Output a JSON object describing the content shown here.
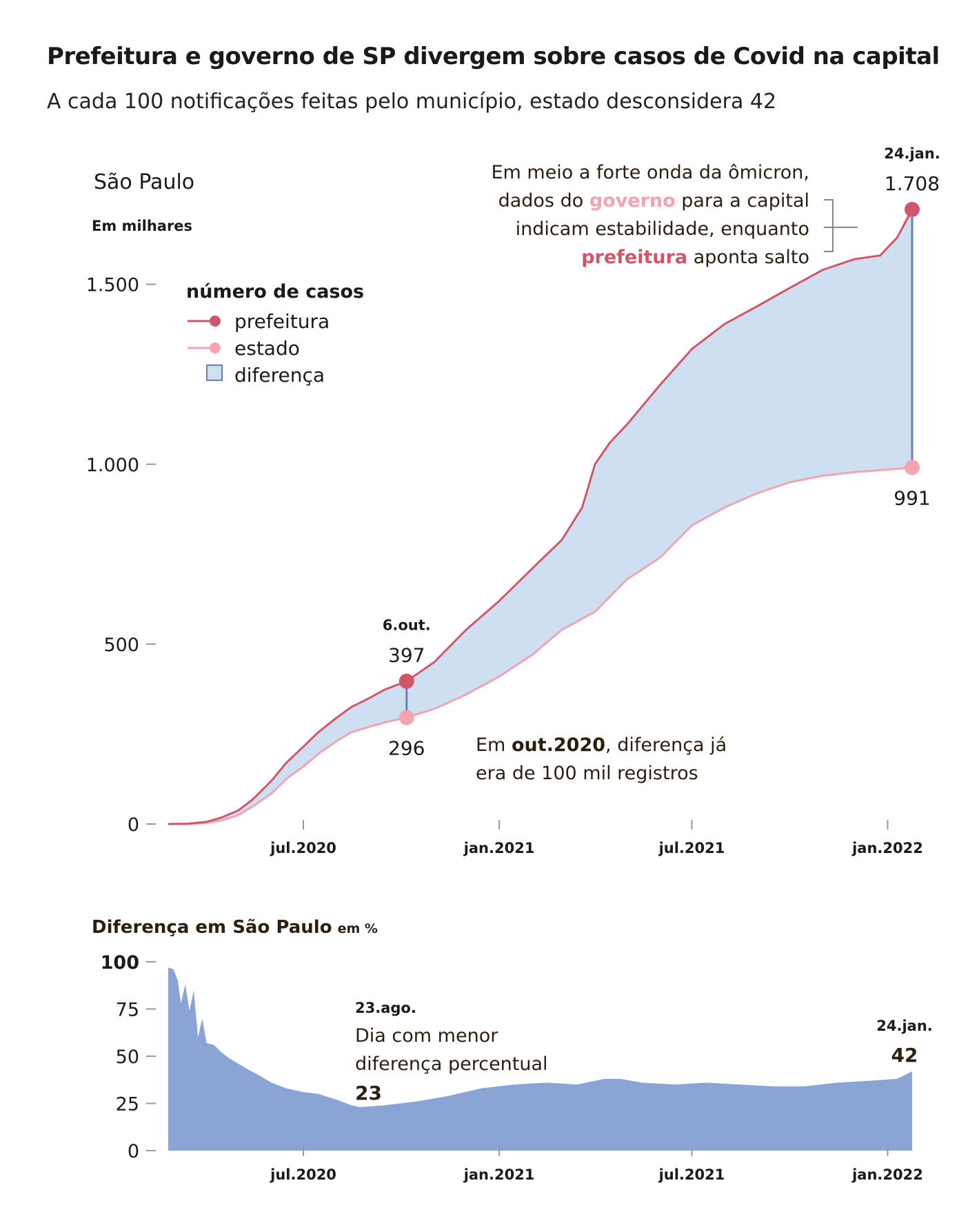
{
  "title": "Prefeitura e governo de SP divergem sobre casos de Covid na capital",
  "subtitle": "A cada 100 notificações feitas pelo município, estado desconsidera 42",
  "colors": {
    "prefeitura": "#d0576b",
    "estado": "#f4a3b1",
    "diferenca_fill": "#cfdff2",
    "diferenca_stroke": "#6b7fb5",
    "pct_fill": "#8aa4d6",
    "text": "#1a1a1a",
    "annotation": "#2b1f10",
    "axis": "#999999"
  },
  "chart_data": [
    {
      "type": "area",
      "location_label": "São Paulo",
      "unit_label": "Em milhares",
      "legend": {
        "title": "número de casos",
        "items": [
          {
            "label": "prefeitura",
            "icon": "red-dot-line-icon"
          },
          {
            "label": "estado",
            "icon": "pink-dot-line-icon"
          },
          {
            "label": "diferença",
            "icon": "blue-square-icon"
          }
        ]
      },
      "ylim": [
        0,
        1708
      ],
      "yticks": [
        {
          "value": 0,
          "label": "0"
        },
        {
          "value": 500,
          "label": "500"
        },
        {
          "value": 1000,
          "label": "1.000"
        },
        {
          "value": 1500,
          "label": "1.500"
        }
      ],
      "xticks": [
        {
          "date": "2020-07-01",
          "label": "jul.2020"
        },
        {
          "date": "2021-01-01",
          "label": "jan.2021"
        },
        {
          "date": "2021-07-01",
          "label": "jul.2021"
        },
        {
          "date": "2022-01-01",
          "label": "jan.2022"
        }
      ],
      "series": [
        {
          "name": "prefeitura",
          "points": [
            [
              "2020-02-25",
              0
            ],
            [
              "2020-03-15",
              1
            ],
            [
              "2020-04-01",
              6
            ],
            [
              "2020-04-15",
              18
            ],
            [
              "2020-05-01",
              38
            ],
            [
              "2020-05-15",
              70
            ],
            [
              "2020-06-01",
              120
            ],
            [
              "2020-06-15",
              170
            ],
            [
              "2020-07-01",
              215
            ],
            [
              "2020-07-15",
              255
            ],
            [
              "2020-08-01",
              295
            ],
            [
              "2020-08-15",
              325
            ],
            [
              "2020-09-01",
              350
            ],
            [
              "2020-09-15",
              373
            ],
            [
              "2020-10-06",
              397
            ],
            [
              "2020-11-01",
              450
            ],
            [
              "2020-12-01",
              540
            ],
            [
              "2021-01-01",
              620
            ],
            [
              "2021-02-01",
              710
            ],
            [
              "2021-03-01",
              790
            ],
            [
              "2021-03-20",
              880
            ],
            [
              "2021-04-01",
              1000
            ],
            [
              "2021-04-15",
              1060
            ],
            [
              "2021-05-01",
              1110
            ],
            [
              "2021-06-01",
              1220
            ],
            [
              "2021-07-01",
              1320
            ],
            [
              "2021-08-01",
              1390
            ],
            [
              "2021-09-01",
              1440
            ],
            [
              "2021-10-01",
              1490
            ],
            [
              "2021-11-01",
              1540
            ],
            [
              "2021-12-01",
              1570
            ],
            [
              "2021-12-25",
              1580
            ],
            [
              "2022-01-10",
              1630
            ],
            [
              "2022-01-24",
              1708
            ]
          ]
        },
        {
          "name": "estado",
          "points": [
            [
              "2020-02-25",
              0
            ],
            [
              "2020-03-15",
              0
            ],
            [
              "2020-04-01",
              3
            ],
            [
              "2020-04-15",
              10
            ],
            [
              "2020-05-01",
              25
            ],
            [
              "2020-05-15",
              50
            ],
            [
              "2020-06-01",
              85
            ],
            [
              "2020-06-15",
              125
            ],
            [
              "2020-07-01",
              160
            ],
            [
              "2020-07-15",
              195
            ],
            [
              "2020-08-01",
              230
            ],
            [
              "2020-08-15",
              255
            ],
            [
              "2020-09-01",
              270
            ],
            [
              "2020-09-15",
              282
            ],
            [
              "2020-10-06",
              296
            ],
            [
              "2020-11-01",
              320
            ],
            [
              "2020-12-01",
              360
            ],
            [
              "2021-01-01",
              410
            ],
            [
              "2021-02-01",
              470
            ],
            [
              "2021-03-01",
              540
            ],
            [
              "2021-04-01",
              590
            ],
            [
              "2021-05-01",
              680
            ],
            [
              "2021-06-01",
              740
            ],
            [
              "2021-07-01",
              830
            ],
            [
              "2021-08-01",
              880
            ],
            [
              "2021-09-01",
              920
            ],
            [
              "2021-10-01",
              950
            ],
            [
              "2021-11-01",
              968
            ],
            [
              "2021-12-01",
              978
            ],
            [
              "2022-01-01",
              985
            ],
            [
              "2022-01-24",
              991
            ]
          ]
        }
      ],
      "highlights": [
        {
          "date_label": "6.out.",
          "date": "2020-10-06",
          "prefeitura": 397,
          "prefeitura_label": "397",
          "estado": 296,
          "estado_label": "296"
        },
        {
          "date_label": "24.jan.",
          "date": "2022-01-24",
          "prefeitura": 1708,
          "prefeitura_label": "1.708",
          "estado": 991,
          "estado_label": "991"
        }
      ],
      "annotations": {
        "omicron": {
          "line1": "Em meio a forte onda da ômicron,",
          "line2_pre": "dados do ",
          "line2_em": "governo",
          "line2_post": " para a capital",
          "line3": "indicam estabilidade, enquanto",
          "line4_em": "prefeitura",
          "line4_post": " aponta salto"
        },
        "october": {
          "line1_pre": "Em ",
          "line1_em": "out.2020",
          "line1_post": ", diferença já",
          "line2": "era de 100 mil registros"
        }
      }
    },
    {
      "type": "area",
      "title": "Diferença em São Paulo",
      "unit": "em %",
      "ylim": [
        0,
        100
      ],
      "yticks": [
        {
          "value": 0,
          "label": "0"
        },
        {
          "value": 25,
          "label": "25"
        },
        {
          "value": 50,
          "label": "50"
        },
        {
          "value": 75,
          "label": "75"
        },
        {
          "value": 100,
          "label": "100"
        }
      ],
      "xticks": [
        {
          "date": "2020-07-01",
          "label": "jul.2020"
        },
        {
          "date": "2021-01-01",
          "label": "jan.2021"
        },
        {
          "date": "2021-07-01",
          "label": "jul.2021"
        },
        {
          "date": "2022-01-01",
          "label": "jan.2022"
        }
      ],
      "series": [
        {
          "name": "diferença",
          "points": [
            [
              "2020-02-25",
              97
            ],
            [
              "2020-03-01",
              96
            ],
            [
              "2020-03-05",
              90
            ],
            [
              "2020-03-08",
              78
            ],
            [
              "2020-03-12",
              88
            ],
            [
              "2020-03-16",
              74
            ],
            [
              "2020-03-20",
              85
            ],
            [
              "2020-03-24",
              60
            ],
            [
              "2020-03-28",
              70
            ],
            [
              "2020-04-01",
              57
            ],
            [
              "2020-04-08",
              56
            ],
            [
              "2020-04-15",
              52
            ],
            [
              "2020-04-22",
              49
            ],
            [
              "2020-05-01",
              46
            ],
            [
              "2020-05-10",
              43
            ],
            [
              "2020-05-20",
              40
            ],
            [
              "2020-06-01",
              36
            ],
            [
              "2020-06-15",
              33
            ],
            [
              "2020-07-01",
              31
            ],
            [
              "2020-07-15",
              30
            ],
            [
              "2020-08-01",
              27
            ],
            [
              "2020-08-15",
              24
            ],
            [
              "2020-08-23",
              23
            ],
            [
              "2020-09-15",
              24
            ],
            [
              "2020-10-15",
              26
            ],
            [
              "2020-11-15",
              29
            ],
            [
              "2020-12-15",
              33
            ],
            [
              "2021-01-15",
              35
            ],
            [
              "2021-02-15",
              36
            ],
            [
              "2021-03-15",
              35
            ],
            [
              "2021-04-10",
              38
            ],
            [
              "2021-04-25",
              38
            ],
            [
              "2021-05-15",
              36
            ],
            [
              "2021-06-15",
              35
            ],
            [
              "2021-07-15",
              36
            ],
            [
              "2021-08-15",
              35
            ],
            [
              "2021-09-15",
              34
            ],
            [
              "2021-10-15",
              34
            ],
            [
              "2021-11-15",
              36
            ],
            [
              "2021-12-15",
              37
            ],
            [
              "2022-01-10",
              38
            ],
            [
              "2022-01-24",
              42
            ]
          ]
        }
      ],
      "annotations": {
        "min": {
          "date_label": "23.ago.",
          "line1": "Dia com menor",
          "line2": "diferença percentual",
          "value_label": "23",
          "date": "2020-08-23"
        },
        "last": {
          "date_label": "24.jan.",
          "value_label": "42",
          "date": "2022-01-24"
        }
      }
    }
  ]
}
